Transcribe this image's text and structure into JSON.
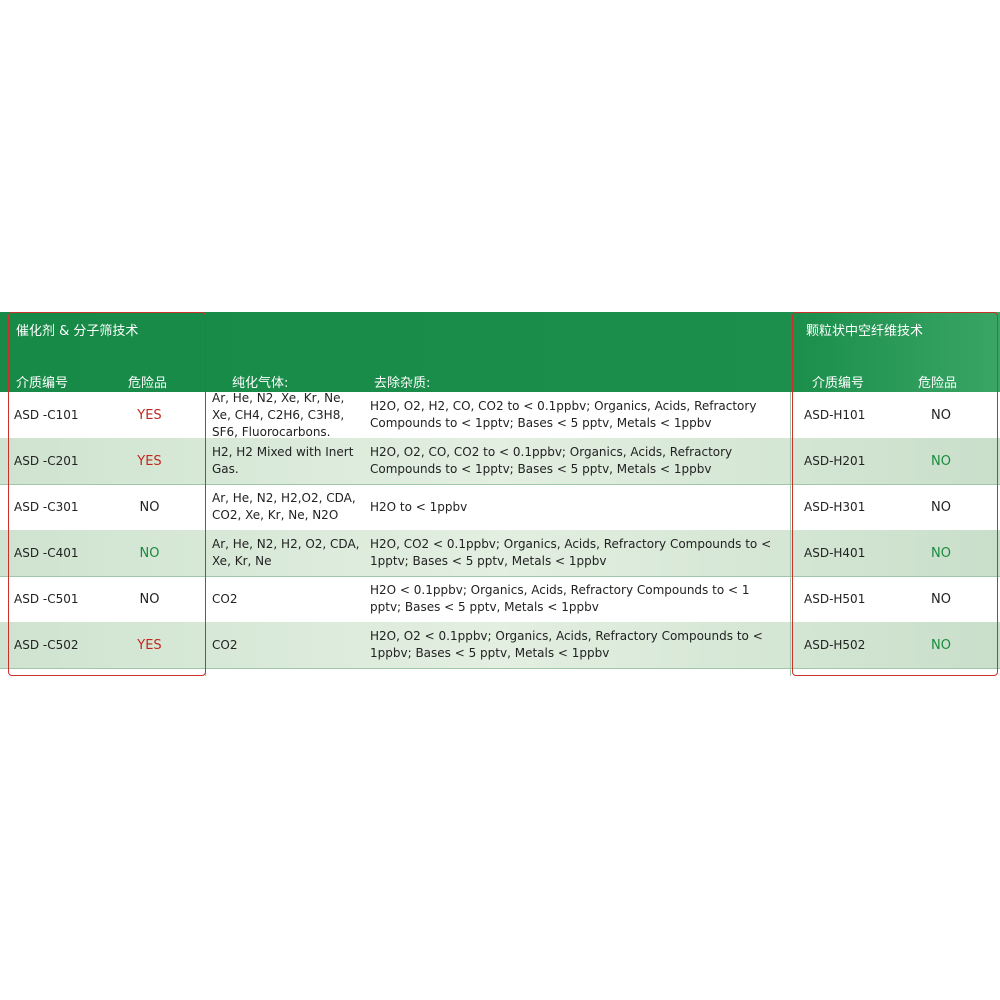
{
  "sections": {
    "left": "催化剂 & 分子筛技术",
    "right": "颗粒状中空纤维技术"
  },
  "columns": [
    "介质编号",
    "危险品",
    "纯化气体:",
    "去除杂质:",
    "介质编号",
    "危险品"
  ],
  "table": {
    "rows": [
      [
        "ASD -C101",
        "YES",
        "Ar, He, N2, Xe, Kr, Ne, Xe, CH4, C2H6, C3H8, SF6, Fluorocarbons.",
        "H2O, O2, H2, CO, CO2 to < 0.1ppbv; Organics, Acids, Refractory Compounds to < 1pptv; Bases < 5 pptv, Metals < 1ppbv",
        "ASD-H101",
        "NO"
      ],
      [
        "ASD -C201",
        "YES",
        "H2, H2 Mixed with Inert Gas.",
        "H2O, O2, CO, CO2 to < 0.1ppbv; Organics, Acids, Refractory Compounds to < 1pptv; Bases < 5 pptv, Metals < 1ppbv",
        "ASD-H201",
        "NO"
      ],
      [
        "ASD -C301",
        "NO",
        "Ar, He, N2, H2,O2, CDA, CO2, Xe, Kr, Ne, N2O",
        "H2O to < 1ppbv",
        "ASD-H301",
        "NO"
      ],
      [
        "ASD -C401",
        "NO",
        "Ar, He, N2, H2, O2, CDA, Xe, Kr, Ne",
        "H2O, CO2 < 0.1ppbv; Organics, Acids, Refractory Compounds to < 1pptv; Bases < 5 pptv, Metals < 1ppbv",
        "ASD-H401",
        "NO"
      ],
      [
        "ASD -C501",
        "NO",
        "CO2",
        "H2O < 0.1ppbv; Organics, Acids, Refractory Compounds to < 1 pptv; Bases < 5 pptv, Metals < 1ppbv",
        "ASD-H501",
        "NO"
      ],
      [
        "ASD -C502",
        "YES",
        "CO2",
        "H2O, O2 < 0.1ppbv; Organics, Acids, Refractory Compounds to < 1ppbv; Bases < 5 pptv, Metals < 1ppbv",
        "ASD-H502",
        "NO"
      ]
    ]
  }
}
